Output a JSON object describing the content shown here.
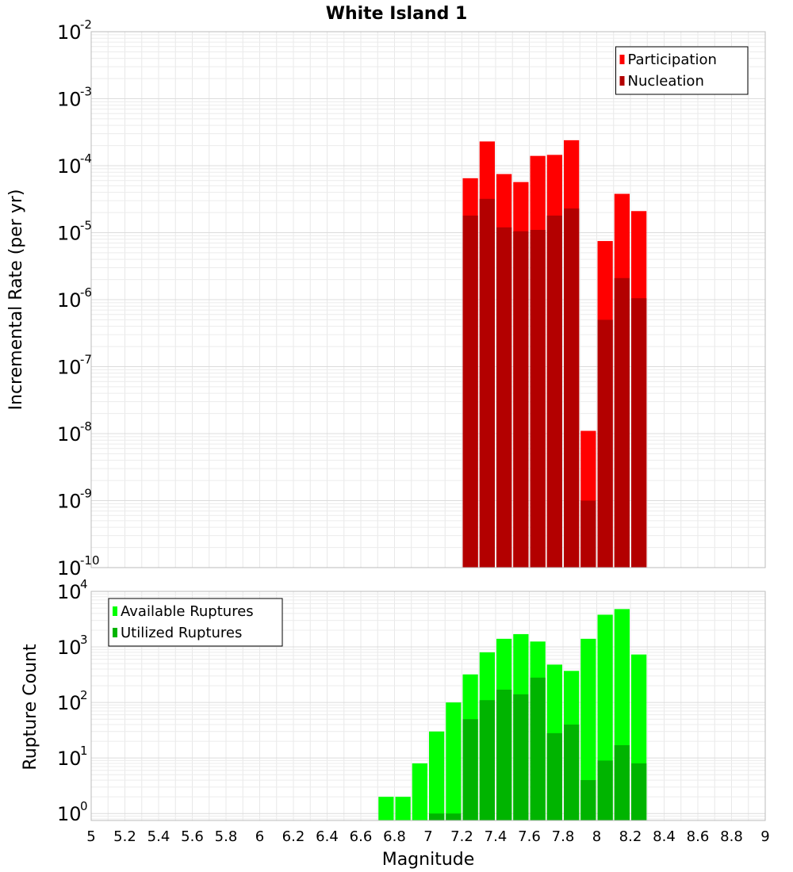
{
  "chart_data": [
    {
      "type": "bar",
      "title": "White Island 1",
      "xlabel": "",
      "ylabel": "Incremental Rate (per yr)",
      "yscale": "log",
      "xlim": [
        5,
        9
      ],
      "ylim": [
        1e-10,
        0.01
      ],
      "grid": true,
      "legend": "top-right",
      "bar_width": 0.1,
      "x": [
        7.25,
        7.35,
        7.45,
        7.55,
        7.65,
        7.75,
        7.85,
        7.95,
        8.05,
        8.15,
        8.25
      ],
      "y_ticks": [
        {
          "base": "10",
          "exp": "-10"
        },
        {
          "base": "10",
          "exp": "-9"
        },
        {
          "base": "10",
          "exp": "-8"
        },
        {
          "base": "10",
          "exp": "-7"
        },
        {
          "base": "10",
          "exp": "-6"
        },
        {
          "base": "10",
          "exp": "-5"
        },
        {
          "base": "10",
          "exp": "-4"
        },
        {
          "base": "10",
          "exp": "-3"
        },
        {
          "base": "10",
          "exp": "-2"
        }
      ],
      "series": [
        {
          "name": "Participation",
          "color": "#ff0000",
          "values": [
            6.5e-05,
            0.00023,
            7.5e-05,
            5.7e-05,
            0.00014,
            0.000145,
            0.00024,
            1.1e-08,
            7.5e-06,
            3.8e-05,
            2.1e-05
          ]
        },
        {
          "name": "Nucleation",
          "color": "#b30000",
          "values": [
            1.8e-05,
            3.2e-05,
            1.2e-05,
            1.05e-05,
            1.1e-05,
            1.8e-05,
            2.3e-05,
            1e-09,
            5e-07,
            2.1e-06,
            1.05e-06
          ]
        }
      ]
    },
    {
      "type": "bar",
      "title": "",
      "xlabel": "Magnitude",
      "ylabel": "Rupture Count",
      "yscale": "log",
      "xlim": [
        5,
        9
      ],
      "ylim": [
        0.75,
        10000.0
      ],
      "grid": true,
      "legend": "top-left",
      "bar_width": 0.1,
      "x": [
        6.75,
        6.85,
        6.95,
        7.05,
        7.15,
        7.25,
        7.35,
        7.45,
        7.55,
        7.65,
        7.75,
        7.85,
        7.95,
        8.05,
        8.15,
        8.25
      ],
      "x_ticks": [
        "5",
        "5.2",
        "5.4",
        "5.6",
        "5.8",
        "6",
        "6.2",
        "6.4",
        "6.6",
        "6.8",
        "7",
        "7.2",
        "7.4",
        "7.6",
        "7.8",
        "8",
        "8.2",
        "8.4",
        "8.6",
        "8.8",
        "9"
      ],
      "y_ticks": [
        {
          "base": "10",
          "exp": "0"
        },
        {
          "base": "10",
          "exp": "1"
        },
        {
          "base": "10",
          "exp": "2"
        },
        {
          "base": "10",
          "exp": "3"
        },
        {
          "base": "10",
          "exp": "4"
        }
      ],
      "series": [
        {
          "name": "Available Ruptures",
          "color": "#00ff00",
          "values": [
            2,
            2,
            8,
            30,
            100,
            320,
            800,
            1400,
            1700,
            1250,
            480,
            370,
            1400,
            3800,
            4800,
            730
          ]
        },
        {
          "name": "Utilized Ruptures",
          "color": "#00b400",
          "values": [
            0,
            0,
            0,
            1,
            1,
            50,
            110,
            170,
            140,
            280,
            28,
            40,
            4,
            9,
            17,
            8
          ]
        }
      ]
    }
  ]
}
